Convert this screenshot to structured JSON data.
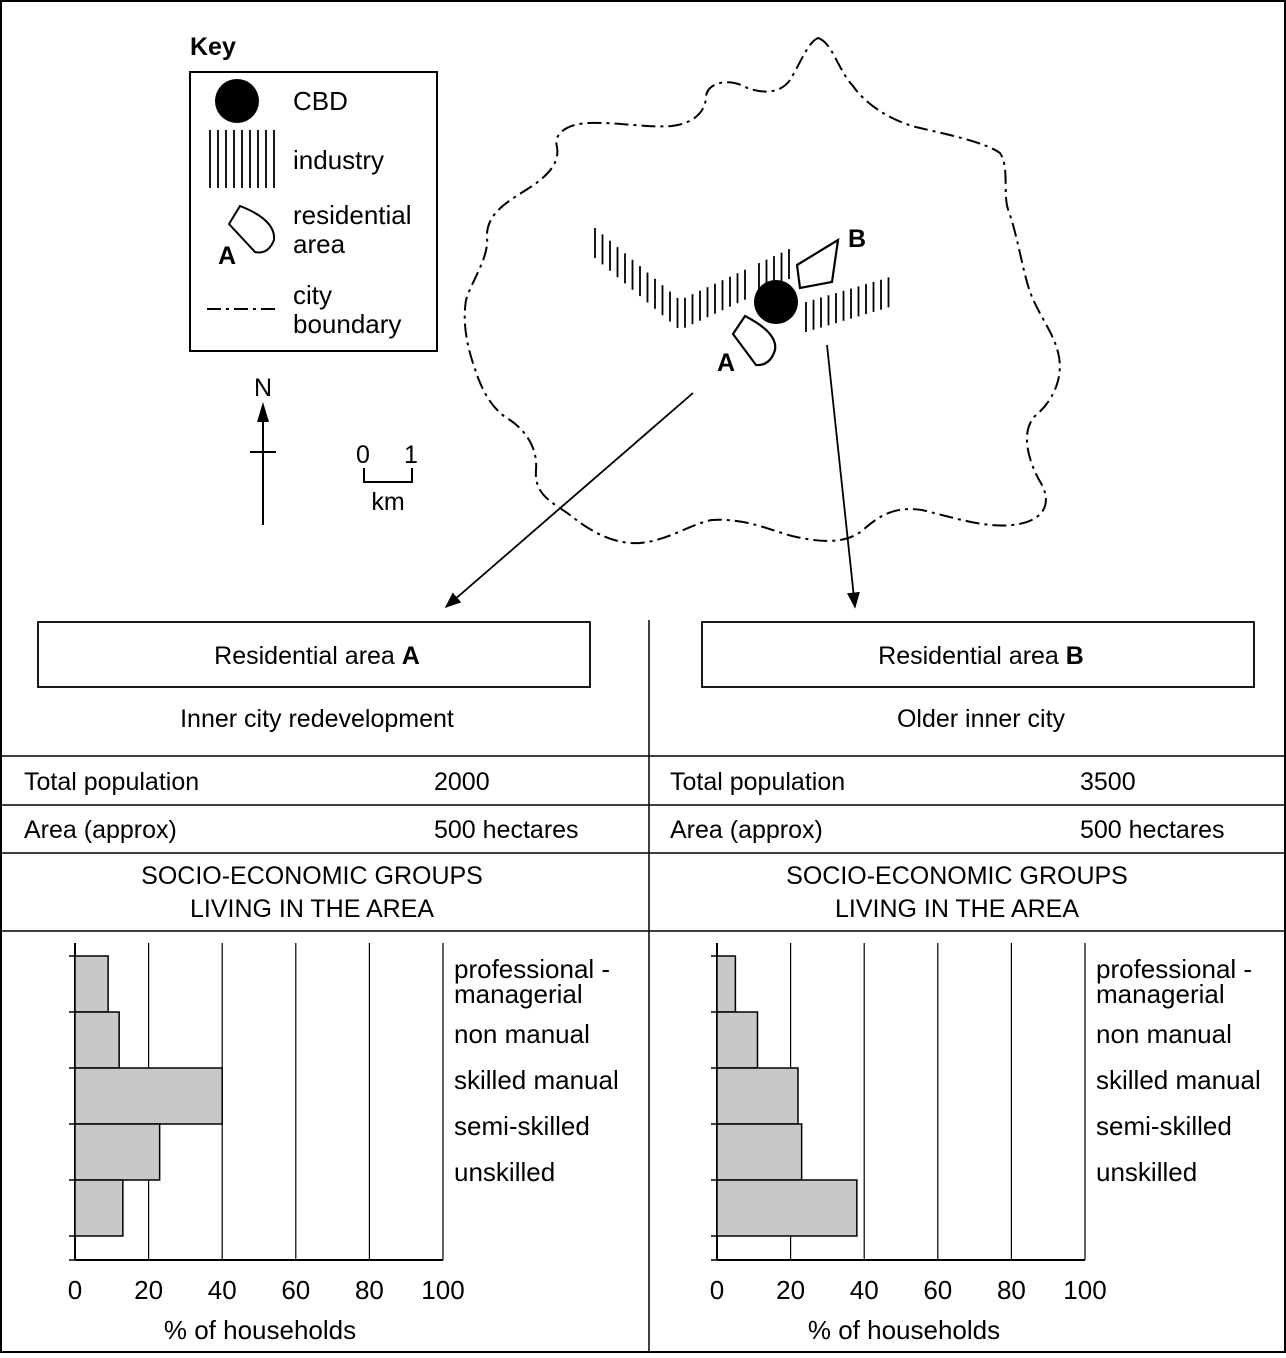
{
  "key": {
    "title": "Key",
    "cbd": "CBD",
    "industry": "industry",
    "residential_line1": "residential",
    "residential_line2": "area",
    "residential_marker": "A",
    "boundary_line1": "city",
    "boundary_line2": "boundary"
  },
  "north_label": "N",
  "scale": {
    "start": "0",
    "end": "1",
    "unit": "km"
  },
  "map_labels": {
    "a": "A",
    "b": "B"
  },
  "panels": [
    {
      "heading_prefix": "Residential area ",
      "heading_letter": "A",
      "subtitle": "Inner city redevelopment",
      "population_label": "Total population",
      "population_value": "2000",
      "area_label": "Area (approx)",
      "area_value": "500 hectares",
      "groups_title_line1": "SOCIO-ECONOMIC GROUPS",
      "groups_title_line2": "LIVING IN THE AREA",
      "xlabel": "% of households"
    },
    {
      "heading_prefix": "Residential area ",
      "heading_letter": "B",
      "subtitle": "Older inner city",
      "population_label": "Total population",
      "population_value": "3500",
      "area_label": "Area (approx)",
      "area_value": "500 hectares",
      "groups_title_line1": "SOCIO-ECONOMIC GROUPS",
      "groups_title_line2": "LIVING IN THE AREA",
      "xlabel": "% of households"
    }
  ],
  "chart_data": [
    {
      "type": "bar",
      "orientation": "horizontal",
      "categories": [
        "professional - managerial",
        "non manual",
        "skilled manual",
        "semi-skilled",
        "unskilled"
      ],
      "category_lines": [
        [
          "professional -",
          "managerial"
        ],
        [
          "non manual"
        ],
        [
          "skilled manual"
        ],
        [
          "semi-skilled"
        ],
        [
          "unskilled"
        ]
      ],
      "values": [
        9,
        12,
        40,
        23,
        13
      ],
      "xlabel": "% of households",
      "xticks": [
        0,
        20,
        40,
        60,
        80,
        100
      ],
      "xlim": [
        0,
        100
      ],
      "grid": true,
      "bar_color": "#c8c8c8"
    },
    {
      "type": "bar",
      "orientation": "horizontal",
      "categories": [
        "professional - managerial",
        "non manual",
        "skilled manual",
        "semi-skilled",
        "unskilled"
      ],
      "category_lines": [
        [
          "professional -",
          "managerial"
        ],
        [
          "non manual"
        ],
        [
          "skilled manual"
        ],
        [
          "semi-skilled"
        ],
        [
          "unskilled"
        ]
      ],
      "values": [
        5,
        11,
        22,
        23,
        38
      ],
      "xlabel": "% of households",
      "xticks": [
        0,
        20,
        40,
        60,
        80,
        100
      ],
      "xlim": [
        0,
        100
      ],
      "grid": true,
      "bar_color": "#c8c8c8"
    }
  ]
}
